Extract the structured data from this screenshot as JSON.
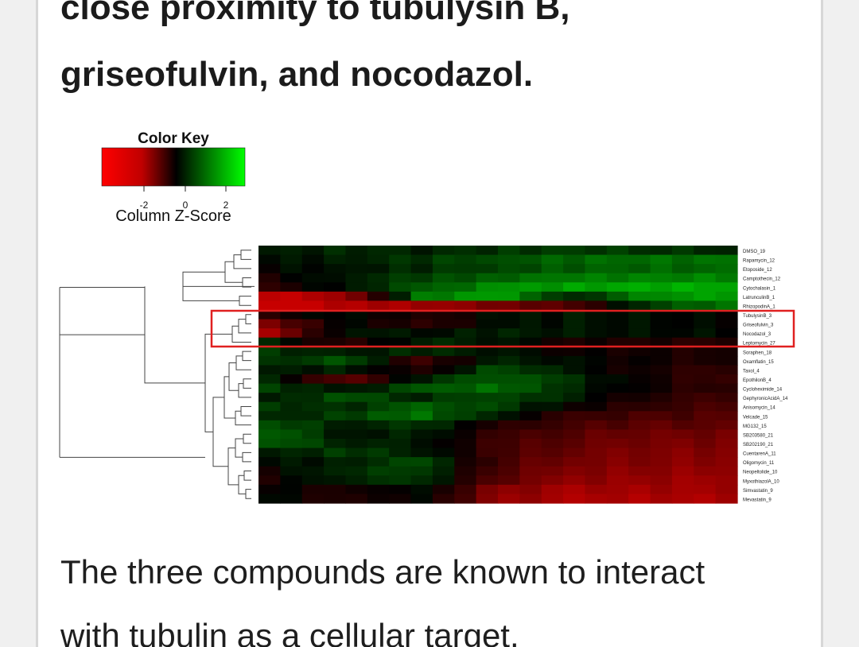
{
  "heading": {
    "line1": "close proximity to tubulysin B,",
    "line2": "griseofulvin, and nocodazol."
  },
  "body": {
    "line1": "The three compounds are known to interact",
    "line2": "with tubulin as a cellular target."
  },
  "color_key": {
    "title": "Color Key",
    "axis_label": "Column Z-Score",
    "ticks": [
      "-2",
      "0",
      "2"
    ],
    "low_color": "#ff0000",
    "mid_color": "#000000",
    "high_color": "#00ff00"
  },
  "highlight_color": "#e02020",
  "chart_data": {
    "type": "heatmap",
    "title": "",
    "rows": [
      "DMSO_19",
      "Rapamycin_12",
      "Etoposide_12",
      "Camptothecin_12",
      "Cytochalasin_1",
      "LatrunculinB_1",
      "RhizopodinA_1",
      "TubulysinB_3",
      "Griseofulvin_3",
      "Nocodazol_3",
      "Leptomycin_27",
      "Soraphen_18",
      "Oxamflatin_15",
      "Taxol_4",
      "EpothilonB_4",
      "Cycloheximide_14",
      "GephyronicAcidA_14",
      "Anisomycin_14",
      "Velcade_15",
      "MG132_15",
      "SB203580_21",
      "SB202190_21",
      "CuentarenA_11",
      "Oligomycin_11",
      "Neopeltolide_10",
      "MyxothiazolA_10",
      "Simvastatin_9",
      "Mevastatin_9"
    ],
    "highlighted_rows": [
      "TubulysinB_3",
      "Griseofulvin_3",
      "Nocodazol_3"
    ],
    "n_columns": 22,
    "color_scale": {
      "min": -2,
      "max": 2,
      "low": "#ff0000",
      "mid": "#000000",
      "high": "#00ff00"
    },
    "z_profiles": [
      [
        0.2,
        0.4,
        0.3,
        0.5,
        0.6,
        0.5,
        0.4
      ],
      [
        0.1,
        0.3,
        0.5,
        0.8,
        1.0,
        1.1,
        1.1
      ],
      [
        0.0,
        0.2,
        0.4,
        0.7,
        0.9,
        1.0,
        1.0
      ],
      [
        -0.2,
        0.3,
        0.6,
        1.0,
        1.2,
        1.3,
        1.3
      ],
      [
        -0.4,
        0.2,
        0.8,
        1.4,
        1.6,
        1.7,
        1.7
      ],
      [
        -2.0,
        -1.6,
        1.2,
        1.6,
        0.3,
        1.4,
        1.6
      ],
      [
        -2.2,
        -1.8,
        -1.6,
        -1.2,
        -0.7,
        0.6,
        1.2
      ],
      [
        -0.3,
        0.2,
        -0.4,
        0.1,
        0.2,
        0.1,
        0.0
      ],
      [
        -1.2,
        0.1,
        -0.5,
        0.1,
        0.2,
        0.1,
        0.0
      ],
      [
        -1.6,
        0.3,
        0.1,
        0.3,
        0.2,
        0.1,
        0.1
      ],
      [
        0.3,
        -0.5,
        0.4,
        0.2,
        -0.2,
        -0.3,
        -0.4
      ],
      [
        0.5,
        0.2,
        0.4,
        0.2,
        -0.1,
        -0.2,
        -0.3
      ],
      [
        0.4,
        0.8,
        -0.6,
        0.3,
        0.1,
        -0.2,
        -0.3
      ],
      [
        0.2,
        0.3,
        -0.4,
        0.8,
        0.1,
        -0.3,
        -0.5
      ],
      [
        0.3,
        -1.0,
        0.3,
        1.0,
        0.4,
        -0.2,
        -0.6
      ],
      [
        0.6,
        0.1,
        0.8,
        1.1,
        0.3,
        -0.2,
        -0.5
      ],
      [
        0.2,
        0.8,
        0.4,
        0.8,
        0.2,
        -0.4,
        -0.6
      ],
      [
        0.5,
        0.4,
        0.9,
        0.6,
        -0.1,
        -0.5,
        -0.7
      ],
      [
        0.3,
        0.6,
        1.1,
        0.2,
        -0.5,
        -0.7,
        -0.8
      ],
      [
        0.8,
        0.3,
        0.5,
        -0.3,
        -0.7,
        -0.9,
        -0.9
      ],
      [
        1.0,
        0.2,
        0.3,
        -0.5,
        -0.9,
        -1.1,
        -1.1
      ],
      [
        0.9,
        0.4,
        0.2,
        -0.6,
        -1.0,
        -1.2,
        -1.2
      ],
      [
        0.2,
        0.6,
        0.3,
        -0.6,
        -1.1,
        -1.3,
        -1.3
      ],
      [
        0.1,
        0.3,
        0.7,
        -0.7,
        -1.2,
        -1.3,
        -1.4
      ],
      [
        -0.1,
        0.5,
        0.6,
        -0.8,
        -1.3,
        -1.4,
        -1.5
      ],
      [
        -0.2,
        0.4,
        0.5,
        -0.9,
        -1.4,
        -1.5,
        -1.6
      ],
      [
        0.0,
        -0.3,
        0.2,
        -1.3,
        -1.6,
        -1.6,
        -1.6
      ],
      [
        0.1,
        -0.4,
        0.1,
        -1.4,
        -1.7,
        -1.7,
        -1.7
      ]
    ]
  }
}
